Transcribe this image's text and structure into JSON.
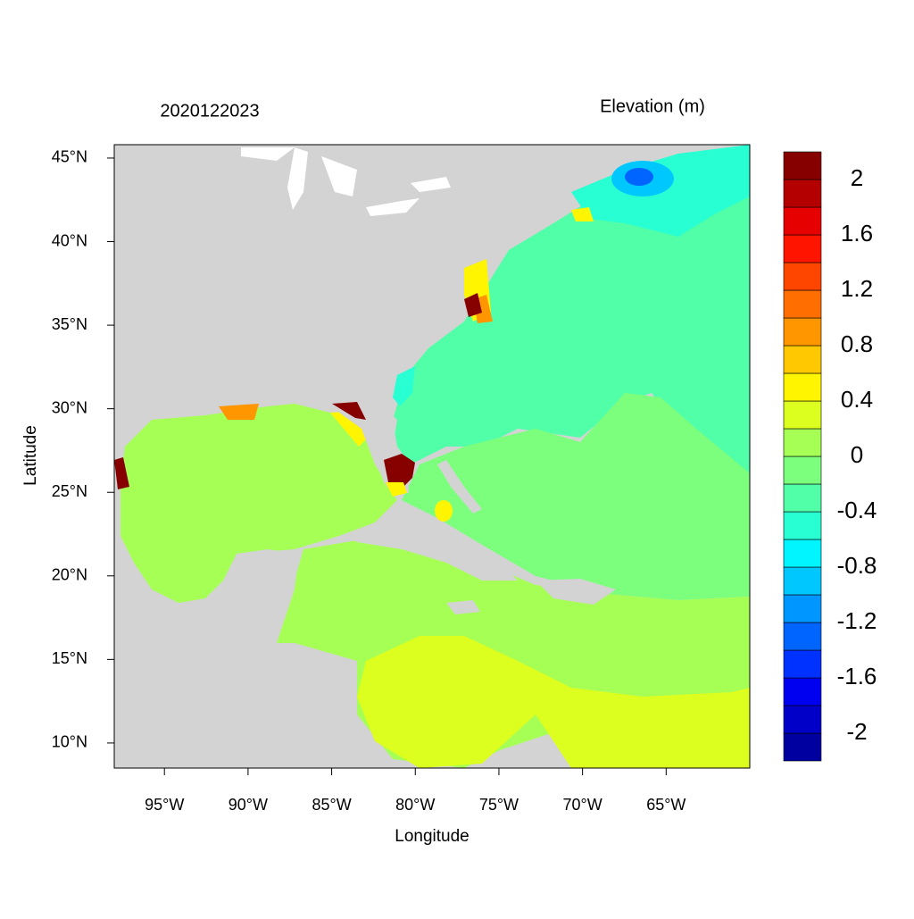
{
  "chart_data": {
    "type": "filled-contour",
    "title": "2020122023",
    "legend_title": "Elevation (m)",
    "x_label": "Longitude",
    "y_label": "Latitude",
    "xlim": [
      -98,
      -60
    ],
    "xticks": [
      {
        "value": -95,
        "label": "95°W"
      },
      {
        "value": -90,
        "label": "90°W"
      },
      {
        "value": -85,
        "label": "85°W"
      },
      {
        "value": -80,
        "label": "80°W"
      },
      {
        "value": -75,
        "label": "75°W"
      },
      {
        "value": -70,
        "label": "70°W"
      },
      {
        "value": -65,
        "label": "65°W"
      }
    ],
    "ylim": [
      8.5,
      45.8
    ],
    "yticks": [
      {
        "value": 10,
        "label": "10°N"
      },
      {
        "value": 15,
        "label": "15°N"
      },
      {
        "value": 20,
        "label": "20°N"
      },
      {
        "value": 25,
        "label": "25°N"
      },
      {
        "value": 30,
        "label": "30°N"
      },
      {
        "value": 35,
        "label": "35°N"
      },
      {
        "value": 40,
        "label": "40°N"
      },
      {
        "value": 45,
        "label": "45°N"
      }
    ],
    "colorbar": {
      "lim": [
        -2.2,
        2.2
      ],
      "ticks": [
        -2,
        -1.6,
        -1.2,
        -0.8,
        -0.4,
        0,
        0.4,
        0.8,
        1.2,
        1.6,
        2
      ],
      "colors": [
        "#0000A0",
        "#0000C8",
        "#0000F0",
        "#0032FF",
        "#0064FF",
        "#0096FF",
        "#00C8FF",
        "#00F5FF",
        "#28FFD2",
        "#50FFA8",
        "#7CFF7C",
        "#A6FF55",
        "#DCFF20",
        "#FFF500",
        "#FFC800",
        "#FF9600",
        "#FF6E00",
        "#FF4600",
        "#FF1400",
        "#E60000",
        "#B40000",
        "#870000"
      ]
    },
    "land_color": "#D3D3D3"
  }
}
